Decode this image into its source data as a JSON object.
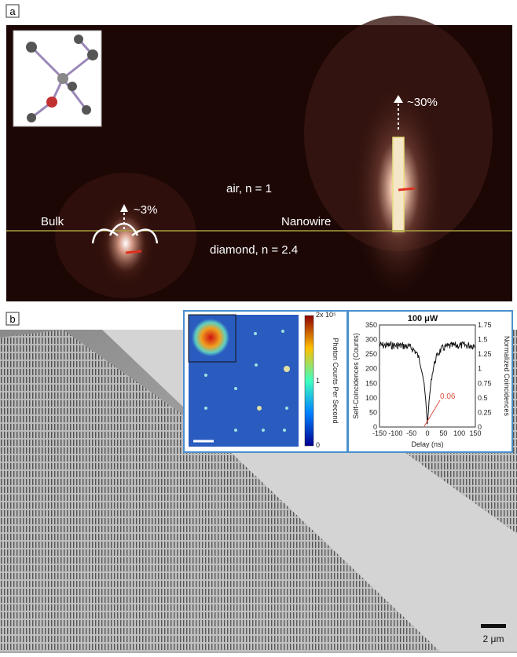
{
  "panel_a": {
    "label": "a",
    "bulk": "Bulk",
    "nanowire": "Nanowire",
    "air": "air, n = 1",
    "diamond": "diamond, n = 2.4",
    "bulk_fraction": "~3%",
    "nanowire_fraction": "~30%"
  },
  "panel_b": {
    "label": "b",
    "scale_bar": "2 μm",
    "pl_map": {
      "colorbar_ticks": [
        "2x 10⁵",
        "1",
        "0"
      ],
      "colorbar_label": "Photon Counts Per Second"
    },
    "g2": {
      "title": "100 μW",
      "x_label": "Delay (ns)",
      "y_label": "Self-Coincidences (Counts)",
      "y2_label": "Normalized Coincidences",
      "x_ticks": [
        "-150",
        "-100",
        "-50",
        "0",
        "50",
        "100",
        "150"
      ],
      "y_ticks": [
        "350",
        "300",
        "250",
        "200",
        "150",
        "100",
        "50",
        "0"
      ],
      "y2_ticks": [
        "1.75",
        "1.5",
        "1.25",
        "1",
        "0.75",
        "0.5",
        "0.25",
        "0"
      ],
      "annotation": "0.06"
    }
  }
}
